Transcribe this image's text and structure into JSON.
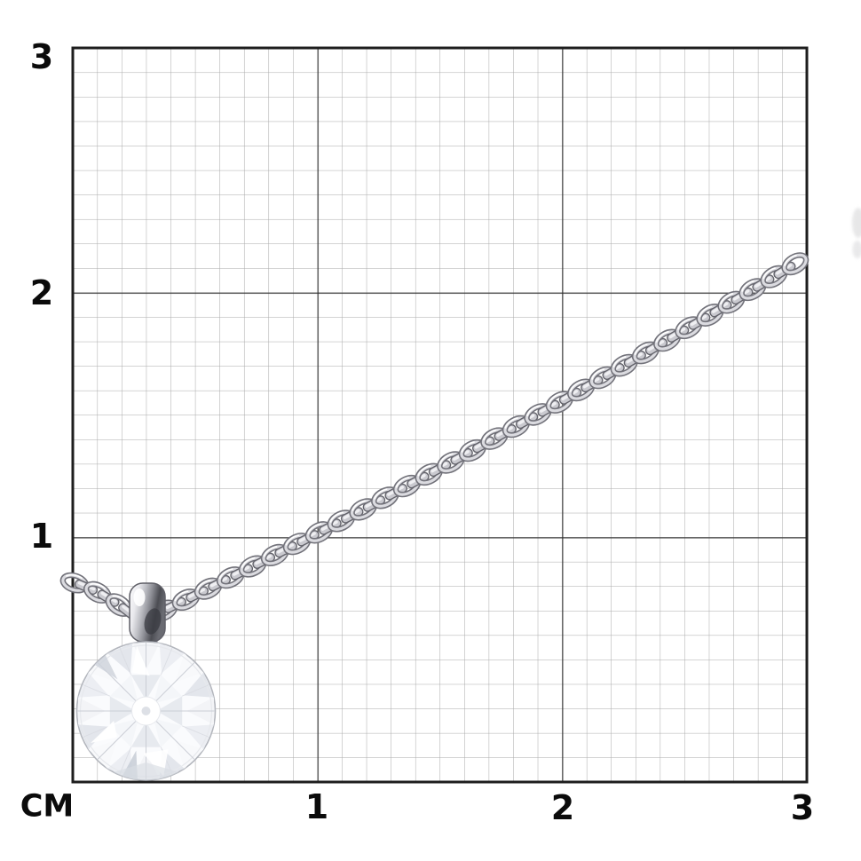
{
  "page": {
    "background": "#ffffff"
  },
  "ruler": {
    "unit_label": "CM",
    "y_ticks": [
      {
        "label": "3"
      },
      {
        "label": "2"
      },
      {
        "label": "1"
      }
    ],
    "x_ticks": [
      {
        "label": "1"
      },
      {
        "label": "2"
      },
      {
        "label": "3"
      }
    ],
    "range_cm": 3,
    "minor_per_major": 10,
    "colors": {
      "minor_line": "#a9a9a9",
      "major_line": "#2b2b2b",
      "border": "#1e1e1e",
      "label": "#0b0b0b"
    }
  },
  "subject": {
    "description": "diamond solitaire pendant on cable chain",
    "colors": {
      "metal_light": "#f6f6f8",
      "metal_mid": "#c6c7cc",
      "metal_dark": "#5a5b61",
      "diamond_white": "#fafbfd",
      "diamond_facet_shadow": "#c9ccd3"
    }
  }
}
